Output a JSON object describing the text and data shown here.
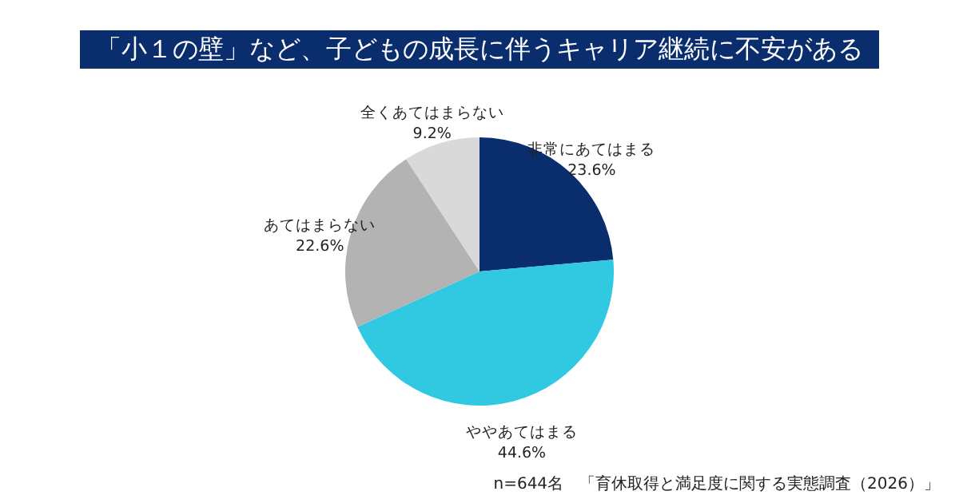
{
  "chart_data": {
    "type": "pie",
    "title": "「小１の壁」など、子どもの成長に伴うキャリア継続に不安がある",
    "categories": [
      "非常にあてはまる",
      "ややあてはまる",
      "あてはまらない",
      "全くあてはまらない"
    ],
    "values": [
      23.6,
      44.6,
      22.6,
      9.2
    ],
    "colors": [
      "#0a2d6e",
      "#31c8e2",
      "#b3b3b3",
      "#d9d9d9"
    ],
    "value_labels": [
      "23.6%",
      "44.6%",
      "22.6%",
      "9.2%"
    ],
    "annotations": [
      "n=644名　「育休取得と満足度に関する実態調査（2026）」"
    ]
  }
}
